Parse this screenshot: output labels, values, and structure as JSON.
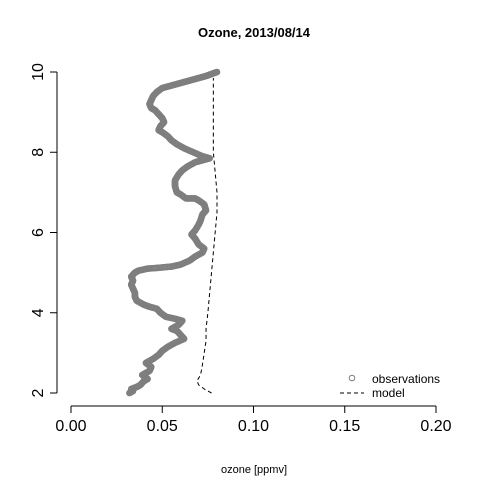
{
  "chart_data": {
    "type": "scatter",
    "title": "Ozone, 2013/08/14",
    "xlabel": "ozone [ppmv]",
    "ylabel": "",
    "xlim": [
      0.0,
      0.2
    ],
    "ylim": [
      2,
      10
    ],
    "x_ticks": [
      "0.00",
      "0.05",
      "0.10",
      "0.15",
      "0.20"
    ],
    "y_ticks": [
      "2",
      "4",
      "6",
      "8",
      "10"
    ],
    "legend_position": "bottom-right",
    "colors": {
      "observations": "#7f7f7f",
      "model": "#000000"
    },
    "series": [
      {
        "name": "observations",
        "style": "points",
        "points": [
          [
            0.032,
            2.0
          ],
          [
            0.034,
            2.05
          ],
          [
            0.033,
            2.1
          ],
          [
            0.036,
            2.15
          ],
          [
            0.038,
            2.2
          ],
          [
            0.04,
            2.3
          ],
          [
            0.042,
            2.35
          ],
          [
            0.039,
            2.45
          ],
          [
            0.043,
            2.55
          ],
          [
            0.044,
            2.65
          ],
          [
            0.041,
            2.75
          ],
          [
            0.045,
            2.85
          ],
          [
            0.048,
            2.95
          ],
          [
            0.05,
            3.05
          ],
          [
            0.053,
            3.15
          ],
          [
            0.057,
            3.25
          ],
          [
            0.062,
            3.35
          ],
          [
            0.06,
            3.45
          ],
          [
            0.058,
            3.55
          ],
          [
            0.055,
            3.6
          ],
          [
            0.059,
            3.7
          ],
          [
            0.061,
            3.8
          ],
          [
            0.057,
            3.85
          ],
          [
            0.052,
            3.9
          ],
          [
            0.049,
            4.0
          ],
          [
            0.047,
            4.1
          ],
          [
            0.043,
            4.15
          ],
          [
            0.04,
            4.2
          ],
          [
            0.036,
            4.3
          ],
          [
            0.035,
            4.4
          ],
          [
            0.035,
            4.5
          ],
          [
            0.034,
            4.6
          ],
          [
            0.033,
            4.7
          ],
          [
            0.034,
            4.8
          ],
          [
            0.033,
            4.9
          ],
          [
            0.035,
            5.0
          ],
          [
            0.037,
            5.05
          ],
          [
            0.042,
            5.1
          ],
          [
            0.048,
            5.12
          ],
          [
            0.055,
            5.15
          ],
          [
            0.06,
            5.2
          ],
          [
            0.065,
            5.3
          ],
          [
            0.068,
            5.4
          ],
          [
            0.072,
            5.5
          ],
          [
            0.073,
            5.6
          ],
          [
            0.07,
            5.7
          ],
          [
            0.068,
            5.85
          ],
          [
            0.066,
            5.95
          ],
          [
            0.068,
            6.05
          ],
          [
            0.07,
            6.2
          ],
          [
            0.071,
            6.3
          ],
          [
            0.072,
            6.45
          ],
          [
            0.074,
            6.55
          ],
          [
            0.073,
            6.7
          ],
          [
            0.07,
            6.8
          ],
          [
            0.068,
            6.85
          ],
          [
            0.063,
            6.85
          ],
          [
            0.06,
            6.95
          ],
          [
            0.058,
            7.0
          ],
          [
            0.057,
            7.15
          ],
          [
            0.057,
            7.3
          ],
          [
            0.059,
            7.45
          ],
          [
            0.061,
            7.55
          ],
          [
            0.064,
            7.65
          ],
          [
            0.068,
            7.75
          ],
          [
            0.072,
            7.8
          ],
          [
            0.076,
            7.85
          ],
          [
            0.072,
            7.9
          ],
          [
            0.067,
            8.0
          ],
          [
            0.062,
            8.1
          ],
          [
            0.058,
            8.2
          ],
          [
            0.055,
            8.3
          ],
          [
            0.053,
            8.4
          ],
          [
            0.05,
            8.5
          ],
          [
            0.048,
            8.55
          ],
          [
            0.049,
            8.65
          ],
          [
            0.051,
            8.75
          ],
          [
            0.05,
            8.85
          ],
          [
            0.048,
            8.95
          ],
          [
            0.046,
            9.05
          ],
          [
            0.044,
            9.1
          ],
          [
            0.043,
            9.2
          ],
          [
            0.044,
            9.3
          ],
          [
            0.045,
            9.4
          ],
          [
            0.047,
            9.5
          ],
          [
            0.05,
            9.6
          ],
          [
            0.054,
            9.65
          ],
          [
            0.058,
            9.7
          ],
          [
            0.062,
            9.75
          ],
          [
            0.066,
            9.8
          ],
          [
            0.07,
            9.85
          ],
          [
            0.074,
            9.9
          ],
          [
            0.077,
            9.95
          ],
          [
            0.08,
            10.0
          ]
        ]
      },
      {
        "name": "model",
        "style": "dashed-line",
        "points": [
          [
            0.077,
            2.0
          ],
          [
            0.073,
            2.1
          ],
          [
            0.07,
            2.2
          ],
          [
            0.069,
            2.3
          ],
          [
            0.071,
            2.45
          ],
          [
            0.072,
            2.7
          ],
          [
            0.073,
            3.0
          ],
          [
            0.074,
            3.3
          ],
          [
            0.074,
            3.6
          ],
          [
            0.075,
            4.0
          ],
          [
            0.076,
            4.5
          ],
          [
            0.077,
            5.0
          ],
          [
            0.078,
            5.5
          ],
          [
            0.079,
            6.0
          ],
          [
            0.08,
            6.5
          ],
          [
            0.08,
            7.0
          ],
          [
            0.079,
            7.5
          ],
          [
            0.078,
            8.0
          ],
          [
            0.078,
            8.5
          ],
          [
            0.078,
            9.0
          ],
          [
            0.078,
            9.5
          ],
          [
            0.078,
            9.85
          ]
        ]
      }
    ]
  }
}
